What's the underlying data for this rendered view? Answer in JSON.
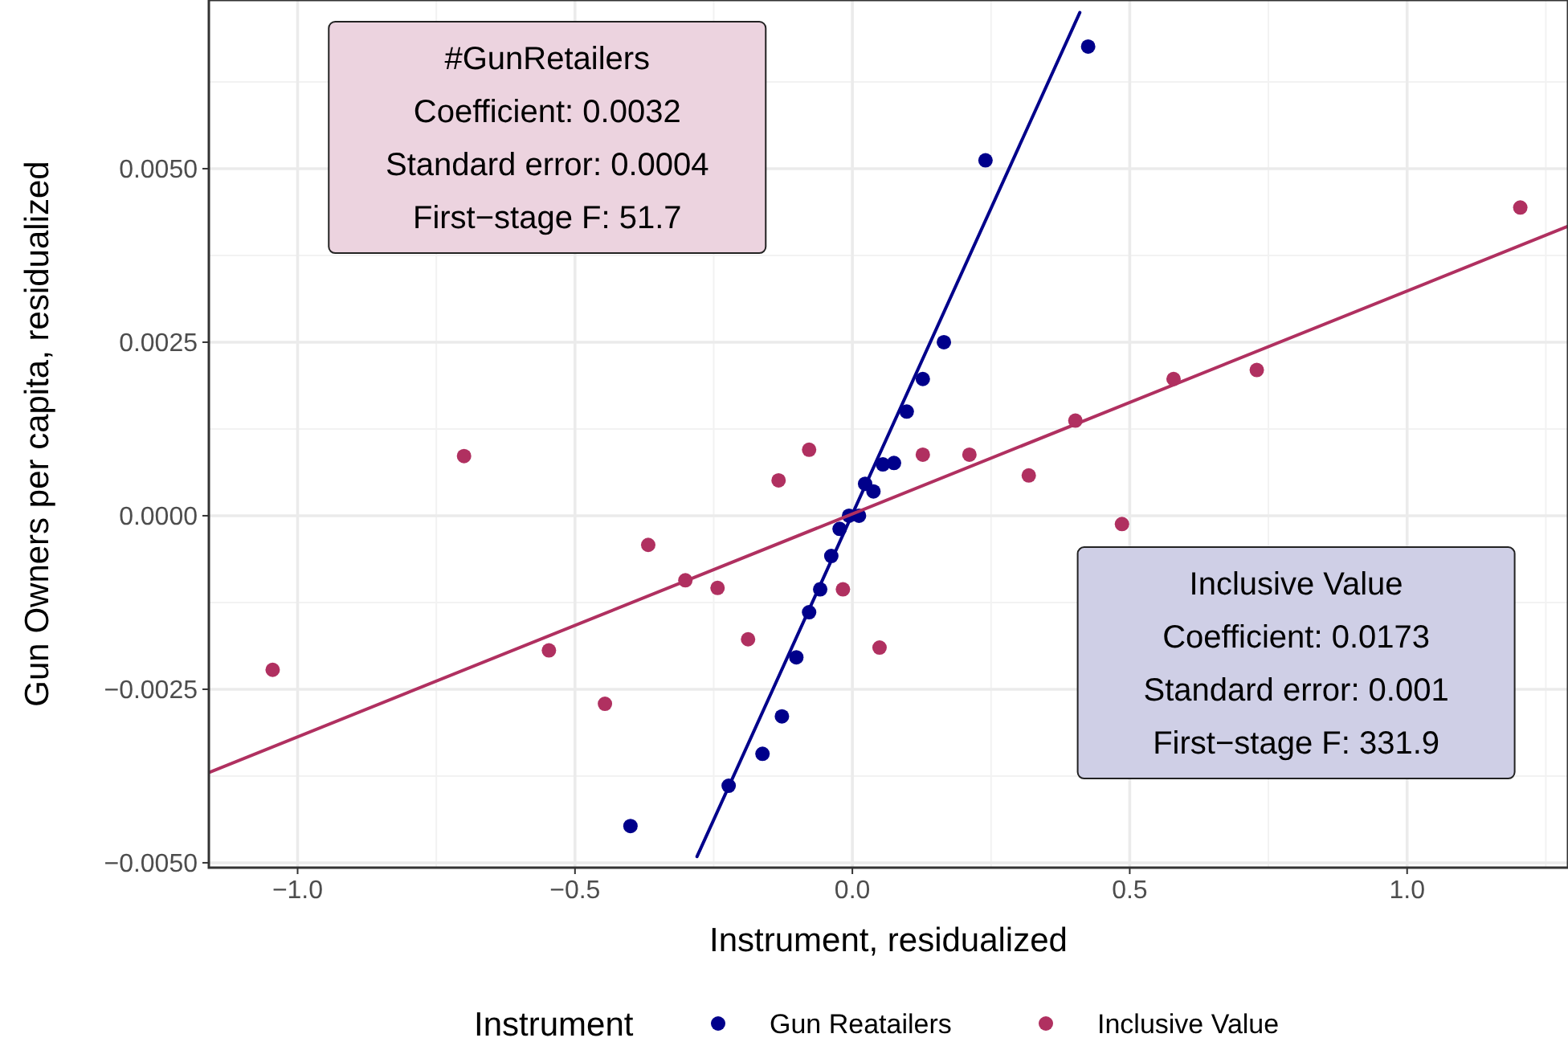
{
  "chart_data": {
    "type": "scatter",
    "xlabel": "Instrument, residualized",
    "ylabel": "Gun Owners per capita, residualized",
    "legend_title": "Instrument",
    "legend": "bottom",
    "grid": true,
    "marker": "circle",
    "xlim": [
      -1.16,
      1.29
    ],
    "ylim": [
      -0.00507,
      0.00743
    ],
    "xticks": [
      {
        "value": -1,
        "label": "−1.0"
      },
      {
        "value": -0.5,
        "label": "−0.5"
      },
      {
        "value": 0,
        "label": "0.0"
      },
      {
        "value": 0.5,
        "label": "0.5"
      },
      {
        "value": 1,
        "label": "1.0"
      }
    ],
    "yticks": [
      {
        "value": -0.005,
        "label": "−0.0050"
      },
      {
        "value": -0.0025,
        "label": "−0.0025"
      },
      {
        "value": 0,
        "label": "0.0000"
      },
      {
        "value": 0.0025,
        "label": "0.0025"
      },
      {
        "value": 0.005,
        "label": "0.0050"
      }
    ],
    "series": [
      {
        "name": "Gun Reatailers",
        "color": "#00008b",
        "x": [
          -0.4,
          -0.223,
          -0.162,
          -0.127,
          -0.101,
          -0.078,
          -0.058,
          -0.038,
          -0.023,
          -0.006,
          0.012,
          0.023,
          0.038,
          0.055,
          0.075,
          0.098,
          0.127,
          0.165,
          0.24,
          0.425
        ],
        "values": [
          -0.00447,
          -0.00389,
          -0.00343,
          -0.00289,
          -0.00204,
          -0.00139,
          -0.00106,
          -0.00058,
          -0.00019,
          0,
          0,
          0.00046,
          0.00035,
          0.00074,
          0.00076,
          0.0015,
          0.00197,
          0.0025,
          0.00512,
          0.00676
        ]
      },
      {
        "name": "Inclusive Value",
        "color": "#b03060",
        "x": [
          -1.045,
          -0.7,
          -0.547,
          -0.446,
          -0.368,
          -0.301,
          -0.243,
          -0.188,
          -0.133,
          -0.078,
          -0.017,
          0.049,
          0.127,
          0.211,
          0.318,
          0.402,
          0.486,
          0.579,
          0.729,
          1.204
        ],
        "values": [
          -0.00222,
          0.00086,
          -0.00194,
          -0.00271,
          -0.00042,
          -0.00093,
          -0.00104,
          -0.00178,
          0.00051,
          0.00095,
          -0.00106,
          -0.0019,
          0.00088,
          0.00088,
          0.00058,
          0.00137,
          -0.00012,
          0.00197,
          0.0021,
          0.00444
        ]
      },
      {
        "type": "line",
        "marker": "none",
        "color": "#00008b",
        "x": [
          -0.28,
          0.41
        ],
        "values": [
          -0.00491,
          0.00725
        ]
      },
      {
        "type": "line",
        "marker": "none",
        "color": "#b03060",
        "x": [
          -1.16,
          1.29
        ],
        "values": [
          -0.0037,
          0.00417
        ]
      }
    ],
    "annotations": [
      "#GunRetailers\nCoefficient: 0.0032\nStandard error: 0.0004\nFirst−stage F: 51.7",
      "Inclusive Value\nCoefficient: 0.0173\nStandard error: 0.001\nFirst−stage F: 331.9"
    ]
  }
}
